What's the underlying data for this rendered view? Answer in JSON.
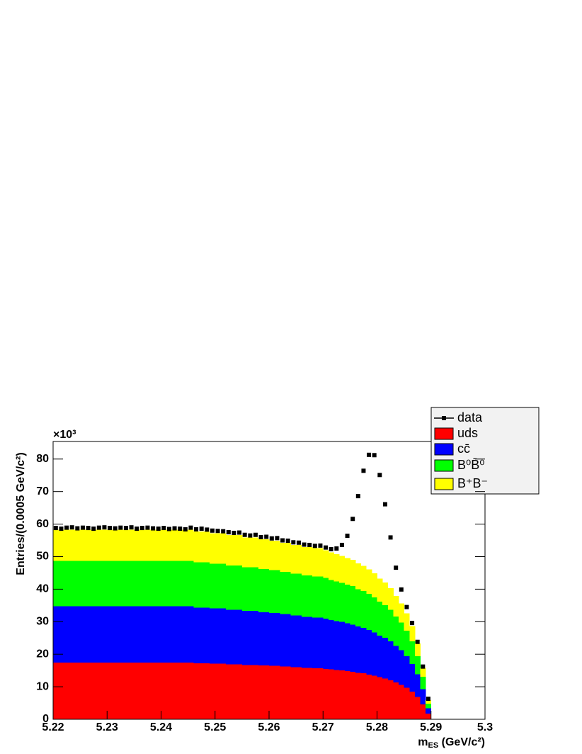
{
  "chart_data": {
    "type": "stacked_histogram",
    "y_multiplier": "×10³",
    "y_label": "Entries/(0.0005 GeV/c²)",
    "x_label": {
      "main": "m",
      "sub": "ES",
      "rest": " (GeV/c²)"
    },
    "xlim": [
      5.22,
      5.3
    ],
    "xticks": [
      5.22,
      5.23,
      5.24,
      5.25,
      5.26,
      5.27,
      5.28,
      5.29,
      5.3
    ],
    "ylim": [
      0,
      85.4
    ],
    "yticks": [
      0,
      10,
      20,
      30,
      40,
      50,
      60,
      70,
      80
    ],
    "legend": "top-right",
    "bins": [
      5.22,
      5.221,
      5.222,
      5.223,
      5.224,
      5.225,
      5.226,
      5.227,
      5.228,
      5.229,
      5.23,
      5.231,
      5.232,
      5.233,
      5.234,
      5.235,
      5.236,
      5.237,
      5.238,
      5.239,
      5.24,
      5.241,
      5.242,
      5.243,
      5.244,
      5.245,
      5.246,
      5.247,
      5.248,
      5.249,
      5.25,
      5.251,
      5.252,
      5.253,
      5.254,
      5.255,
      5.256,
      5.257,
      5.258,
      5.259,
      5.26,
      5.261,
      5.262,
      5.263,
      5.264,
      5.265,
      5.266,
      5.267,
      5.268,
      5.269,
      5.27,
      5.271,
      5.272,
      5.273,
      5.274,
      5.275,
      5.276,
      5.277,
      5.278,
      5.279,
      5.28,
      5.281,
      5.282,
      5.283,
      5.284,
      5.285,
      5.286,
      5.287,
      5.288,
      5.289,
      5.29
    ],
    "data": {
      "name": "data",
      "color": "#000000",
      "values": [
        58.8,
        58.6,
        58.9,
        59.0,
        58.7,
        58.9,
        58.8,
        58.6,
        58.9,
        59.0,
        58.8,
        58.7,
        58.9,
        58.8,
        59.0,
        58.6,
        58.8,
        58.9,
        58.7,
        58.6,
        58.8,
        58.5,
        58.7,
        58.6,
        58.4,
        58.9,
        58.4,
        58.6,
        58.3,
        58.0,
        57.9,
        57.8,
        57.5,
        57.3,
        57.4,
        56.7,
        56.5,
        56.7,
        56.0,
        56.1,
        55.6,
        55.7,
        55.0,
        54.9,
        54.4,
        54.3,
        53.7,
        53.6,
        53.3,
        53.4,
        52.8,
        52.3,
        52.5,
        53.6,
        56.4,
        61.6,
        68.6,
        76.4,
        81.3,
        81.2,
        75.1,
        66.1,
        55.9,
        46.6,
        39.9,
        34.5,
        29.6,
        23.8,
        16.2,
        6.3
      ]
    },
    "series": [
      {
        "name": "uds",
        "color": "#ff0000",
        "values": [
          17.5,
          17.5,
          17.5,
          17.5,
          17.5,
          17.5,
          17.5,
          17.5,
          17.5,
          17.5,
          17.5,
          17.5,
          17.5,
          17.5,
          17.5,
          17.5,
          17.5,
          17.5,
          17.5,
          17.5,
          17.5,
          17.5,
          17.5,
          17.5,
          17.5,
          17.5,
          17.3,
          17.3,
          17.3,
          17.2,
          17.2,
          17.2,
          17.0,
          17.0,
          17.0,
          16.8,
          16.8,
          16.8,
          16.6,
          16.6,
          16.5,
          16.5,
          16.3,
          16.3,
          16.1,
          16.1,
          15.9,
          15.9,
          15.8,
          15.8,
          15.6,
          15.4,
          15.2,
          15.1,
          14.9,
          14.7,
          14.4,
          14.2,
          13.8,
          13.5,
          13.0,
          12.6,
          12.1,
          11.4,
          10.7,
          9.8,
          8.6,
          7.0,
          4.7,
          1.8
        ]
      },
      {
        "name": "cc̄",
        "color": "#0000ff",
        "values": [
          17.3,
          17.3,
          17.3,
          17.3,
          17.3,
          17.3,
          17.3,
          17.3,
          17.3,
          17.3,
          17.3,
          17.3,
          17.3,
          17.3,
          17.3,
          17.3,
          17.3,
          17.3,
          17.3,
          17.3,
          17.3,
          17.3,
          17.3,
          17.3,
          17.3,
          17.3,
          17.1,
          17.1,
          17.1,
          17.0,
          17.0,
          17.0,
          16.8,
          16.8,
          16.8,
          16.6,
          16.6,
          16.6,
          16.4,
          16.4,
          16.3,
          16.3,
          16.1,
          16.1,
          15.9,
          15.9,
          15.7,
          15.7,
          15.6,
          15.6,
          15.4,
          15.2,
          15.1,
          14.9,
          14.7,
          14.5,
          14.2,
          14.0,
          13.7,
          13.3,
          12.8,
          12.5,
          11.9,
          11.2,
          10.6,
          9.7,
          8.5,
          6.9,
          4.7,
          1.7
        ]
      },
      {
        "name": "B⁰B̄⁰",
        "color": "#00ff00",
        "values": [
          14.0,
          14.0,
          14.0,
          14.0,
          14.0,
          14.0,
          14.0,
          14.0,
          14.0,
          14.0,
          14.0,
          14.0,
          14.0,
          14.0,
          14.0,
          14.0,
          14.0,
          14.0,
          14.0,
          14.0,
          14.0,
          14.0,
          14.0,
          14.0,
          14.0,
          14.0,
          13.9,
          13.9,
          13.9,
          13.7,
          13.7,
          13.7,
          13.6,
          13.6,
          13.6,
          13.4,
          13.4,
          13.4,
          13.3,
          13.3,
          13.2,
          13.2,
          13.0,
          13.0,
          12.9,
          12.9,
          12.7,
          12.7,
          12.6,
          12.6,
          12.5,
          12.3,
          12.2,
          12.0,
          11.9,
          11.8,
          11.5,
          11.3,
          11.1,
          10.8,
          10.4,
          10.1,
          9.7,
          9.1,
          8.5,
          7.8,
          6.9,
          5.6,
          3.8,
          1.4
        ]
      },
      {
        "name": "B⁺B⁻",
        "color": "#ffff00",
        "values": [
          9.5,
          9.5,
          9.5,
          9.5,
          9.5,
          9.5,
          9.5,
          9.5,
          9.5,
          9.5,
          9.5,
          9.5,
          9.5,
          9.5,
          9.5,
          9.5,
          9.5,
          9.5,
          9.5,
          9.5,
          9.5,
          9.5,
          9.5,
          9.5,
          9.5,
          9.5,
          9.4,
          9.4,
          9.4,
          9.3,
          9.3,
          9.3,
          9.2,
          9.2,
          9.2,
          9.1,
          9.1,
          9.1,
          9.0,
          9.0,
          8.9,
          8.9,
          8.8,
          8.8,
          8.7,
          8.7,
          8.6,
          8.6,
          8.6,
          8.6,
          8.5,
          8.4,
          8.3,
          8.2,
          8.1,
          8.0,
          7.8,
          7.7,
          7.5,
          7.3,
          7.0,
          6.8,
          6.6,
          6.2,
          5.8,
          5.3,
          4.7,
          3.8,
          2.6,
          1.0
        ]
      }
    ]
  }
}
